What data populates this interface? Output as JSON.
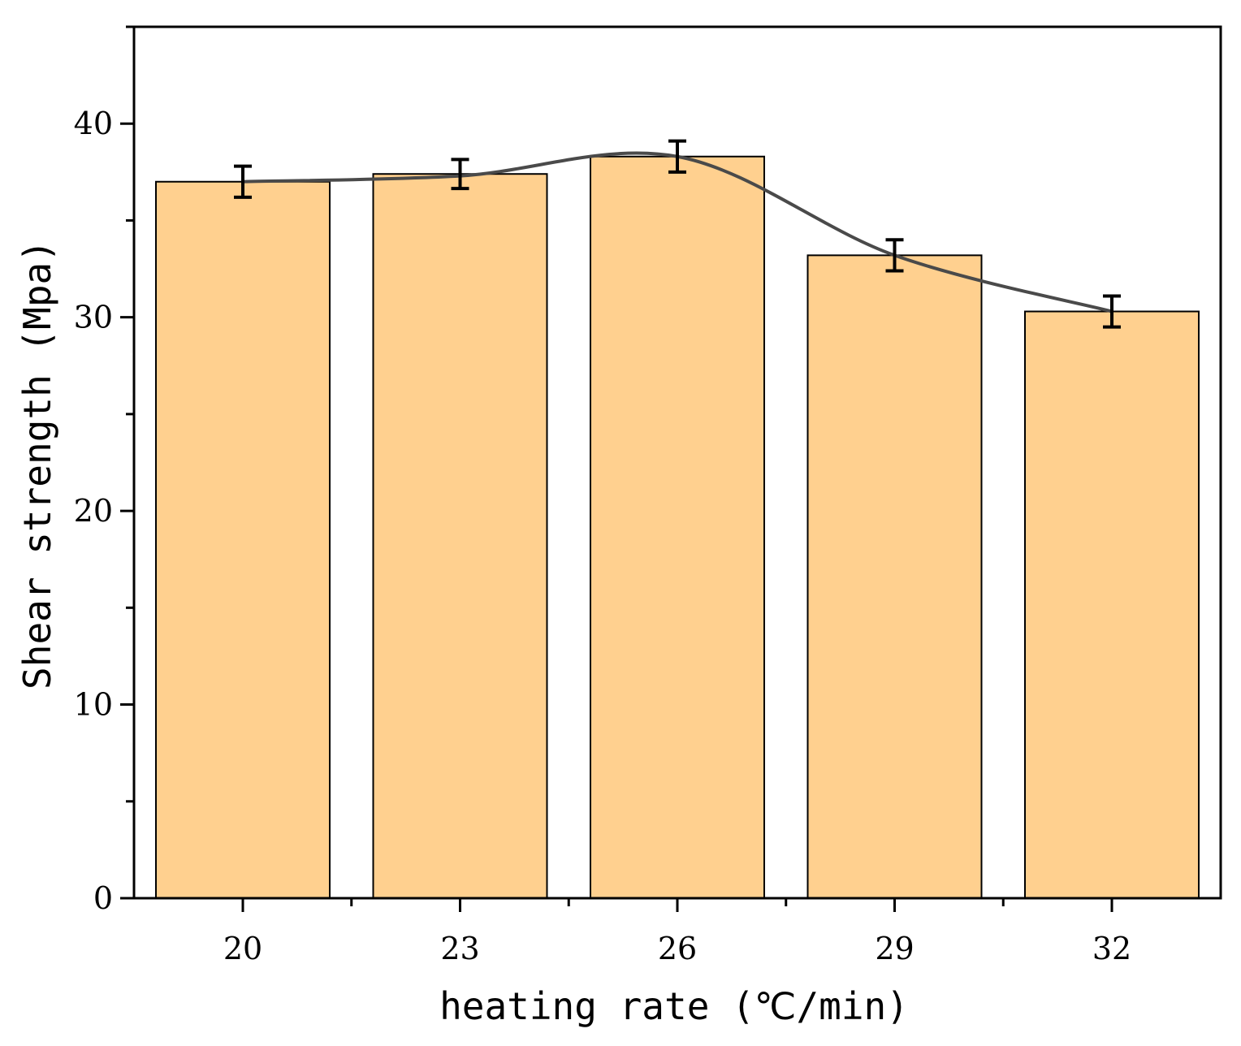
{
  "chart_data": {
    "type": "bar",
    "title": "",
    "xlabel": "heating rate (℃/min)",
    "ylabel": "Shear strength (Mpa)",
    "categories": [
      "20",
      "23",
      "26",
      "29",
      "32"
    ],
    "values": [
      37.0,
      37.4,
      38.3,
      33.2,
      30.3
    ],
    "errors": [
      0.8,
      0.75,
      0.8,
      0.8,
      0.8
    ],
    "trend_line": [
      37.0,
      37.3,
      38.3,
      33.2,
      30.3
    ],
    "yticks": [
      "0",
      "10",
      "20",
      "30",
      "40"
    ],
    "ylim": [
      0,
      45
    ],
    "colors": {
      "bar_fill": "#FFD08F",
      "bar_stroke": "#000000",
      "line": "#4a4a4a",
      "error": "#000000"
    }
  }
}
